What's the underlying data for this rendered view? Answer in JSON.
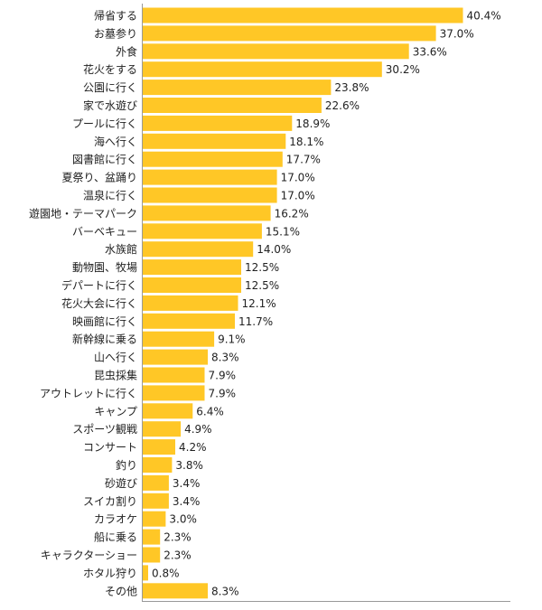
{
  "chart_data": {
    "type": "bar",
    "orientation": "horizontal",
    "categories": [
      "帰省する",
      "お墓参り",
      "外食",
      "花火をする",
      "公園に行く",
      "家で水遊び",
      "プールに行く",
      "海へ行く",
      "図書館に行く",
      "夏祭り、盆踊り",
      "温泉に行く",
      "遊園地・テーマパーク",
      "バーベキュー",
      "水族館",
      "動物園、牧場",
      "デパートに行く",
      "花火大会に行く",
      "映画館に行く",
      "新幹線に乗る",
      "山へ行く",
      "昆虫採集",
      "アウトレットに行く",
      "キャンプ",
      "スポーツ観戦",
      "コンサート",
      "釣り",
      "砂遊び",
      "スイカ割り",
      "カラオケ",
      "船に乗る",
      "キャラクターショー",
      "ホタル狩り",
      "その他"
    ],
    "values": [
      40.4,
      37.0,
      33.6,
      30.2,
      23.8,
      22.6,
      18.9,
      18.1,
      17.7,
      17.0,
      17.0,
      16.2,
      15.1,
      14.0,
      12.5,
      12.5,
      12.1,
      11.7,
      9.1,
      8.3,
      7.9,
      7.9,
      6.4,
      4.9,
      4.2,
      3.8,
      3.4,
      3.4,
      3.0,
      2.3,
      2.3,
      0.8,
      8.3
    ],
    "value_labels": [
      "40.4%",
      "37.0%",
      "33.6%",
      "30.2%",
      "23.8%",
      "22.6%",
      "18.9%",
      "18.1%",
      "17.7%",
      "17.0%",
      "17.0%",
      "16.2%",
      "15.1%",
      "14.0%",
      "12.5%",
      "12.5%",
      "12.1%",
      "11.7%",
      "9.1%",
      "8.3%",
      "7.9%",
      "7.9%",
      "6.4%",
      "4.9%",
      "4.2%",
      "3.8%",
      "3.4%",
      "3.4%",
      "3.0%",
      "2.3%",
      "2.3%",
      "0.8%",
      "8.3%"
    ],
    "xlim": [
      0,
      50
    ],
    "grid": false,
    "legend": "none",
    "bar_color": "#FFC726",
    "axis_color": "#999999"
  }
}
